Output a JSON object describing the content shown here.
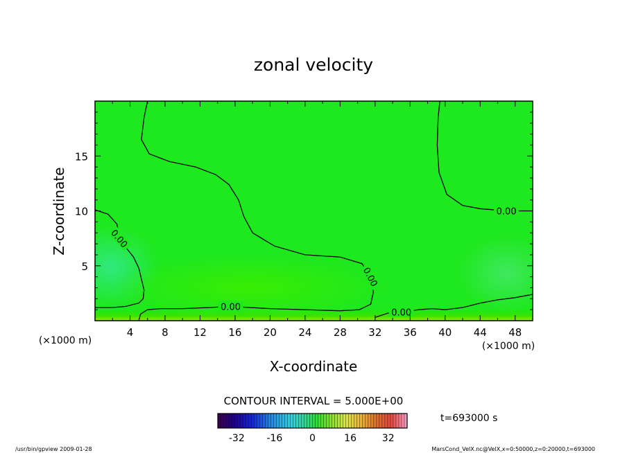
{
  "chart_data": {
    "type": "heatmap",
    "title": "zonal velocity",
    "xlabel": "X-coordinate",
    "ylabel": "Z-coordinate",
    "x_unit_label": "(×1000 m)",
    "y_unit_label": "(×1000 m)",
    "xlim": [
      0,
      50
    ],
    "ylim": [
      0,
      20
    ],
    "x_ticks": [
      4,
      8,
      12,
      16,
      20,
      24,
      28,
      32,
      36,
      40,
      44,
      48
    ],
    "y_ticks": [
      5,
      10,
      15
    ],
    "contour_interval_text": "CONTOUR INTERVAL = 5.000E+00",
    "contour_label": "0.00",
    "contour_zero_lines": [
      [
        [
          6.0,
          20
        ],
        [
          5.6,
          18.5
        ],
        [
          5.3,
          16.5
        ],
        [
          6.2,
          15.2
        ],
        [
          8.5,
          14.5
        ],
        [
          11.5,
          14.0
        ],
        [
          13.8,
          13.3
        ],
        [
          15.3,
          12.4
        ],
        [
          16.4,
          11.0
        ],
        [
          17.0,
          9.5
        ],
        [
          18.0,
          8.0
        ],
        [
          20.5,
          6.8
        ],
        [
          24.0,
          6.0
        ],
        [
          28.0,
          5.8
        ],
        [
          30.5,
          5.2
        ],
        [
          31.5,
          4.0
        ],
        [
          31.8,
          2.6
        ],
        [
          31.5,
          1.5
        ],
        [
          30.2,
          1.0
        ],
        [
          28.0,
          0.9
        ],
        [
          24.0,
          1.0
        ],
        [
          20.0,
          1.1
        ],
        [
          15.5,
          1.3
        ],
        [
          13.0,
          1.2
        ],
        [
          10.0,
          1.1
        ],
        [
          7.5,
          1.1
        ],
        [
          6.0,
          1.0
        ],
        [
          5.2,
          0.6
        ],
        [
          5.0,
          0.0
        ]
      ],
      [
        [
          39.4,
          20
        ],
        [
          39.2,
          18.5
        ],
        [
          39.1,
          16.0
        ],
        [
          39.3,
          13.5
        ],
        [
          40.2,
          11.5
        ],
        [
          42.0,
          10.5
        ],
        [
          44.0,
          10.2
        ],
        [
          47.0,
          10.0
        ],
        [
          50.0,
          10.0
        ]
      ],
      [
        [
          0,
          10.1
        ],
        [
          1.5,
          9.7
        ],
        [
          2.5,
          8.8
        ],
        [
          2.8,
          7.5
        ],
        [
          3.6,
          6.6
        ],
        [
          4.4,
          5.8
        ],
        [
          5.0,
          4.8
        ],
        [
          5.3,
          3.8
        ],
        [
          5.6,
          2.8
        ],
        [
          5.5,
          2.0
        ],
        [
          5.0,
          1.6
        ],
        [
          3.5,
          1.3
        ],
        [
          2.0,
          1.2
        ],
        [
          0.0,
          1.2
        ]
      ],
      [
        [
          32.0,
          0.3
        ],
        [
          33.5,
          0.7
        ],
        [
          35.0,
          0.8
        ],
        [
          37.0,
          1.0
        ],
        [
          38.5,
          1.1
        ],
        [
          40.0,
          1.0
        ],
        [
          42.0,
          1.2
        ],
        [
          44.0,
          1.6
        ],
        [
          46.0,
          1.9
        ],
        [
          48.0,
          2.1
        ],
        [
          50.0,
          2.4
        ]
      ]
    ],
    "colorbar": {
      "min": -40,
      "max": 40,
      "ticks": [
        -32,
        -16,
        0,
        16,
        32
      ]
    },
    "time_text": "t=693000 s"
  },
  "footer": {
    "left": "/usr/bin/gpview  2009-01-28",
    "right": "MarsCond_VelX.nc@VelX,x=0:50000,z=0:20000,t=693000"
  }
}
